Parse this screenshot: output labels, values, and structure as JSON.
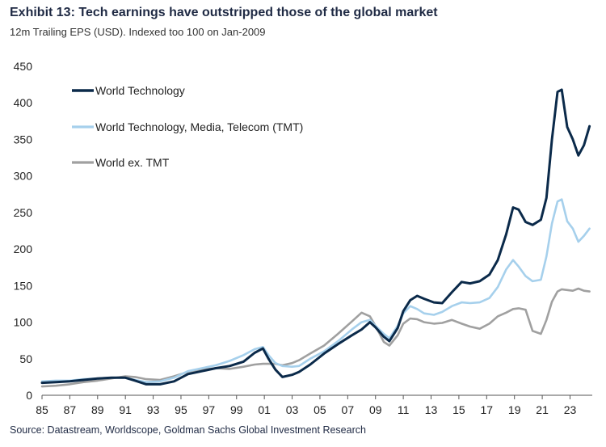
{
  "title": "Exhibit 13: Tech earnings have outstripped those of the global market",
  "subtitle": "12m Trailing EPS (USD). Indexed too 100 on Jan-2009",
  "source": "Source: Datastream, Worldscope, Goldman Sachs Global Investment Research",
  "chart_data": {
    "type": "line",
    "title": "Exhibit 13: Tech earnings have outstripped those of the global market",
    "subtitle": "12m Trailing EPS (USD). Indexed too 100 on Jan-2009",
    "xlabel": "",
    "ylabel": "",
    "ylim": [
      0,
      450
    ],
    "xlim": [
      1985,
      2024.6
    ],
    "y_ticks": [
      0,
      50,
      100,
      150,
      200,
      250,
      300,
      350,
      400,
      450
    ],
    "x_ticks": [
      1985,
      1987,
      1989,
      1991,
      1993,
      1995,
      1997,
      1999,
      2001,
      2003,
      2005,
      2007,
      2009,
      2011,
      2013,
      2015,
      2017,
      2019,
      2021,
      2023
    ],
    "x_tick_labels": [
      "85",
      "87",
      "89",
      "91",
      "93",
      "95",
      "97",
      "99",
      "01",
      "03",
      "05",
      "07",
      "09",
      "11",
      "13",
      "15",
      "17",
      "19",
      "21",
      "23"
    ],
    "grid": false,
    "legend": "top-left",
    "series": [
      {
        "name": "World Technology",
        "color": "#0b2a4a",
        "points": [
          [
            1985,
            17
          ],
          [
            1986,
            18
          ],
          [
            1987,
            19
          ],
          [
            1988,
            21
          ],
          [
            1989,
            23
          ],
          [
            1990,
            24
          ],
          [
            1991,
            24
          ],
          [
            1991.7,
            20
          ],
          [
            1992.5,
            15
          ],
          [
            1993.5,
            15
          ],
          [
            1994.5,
            19
          ],
          [
            1995.5,
            29
          ],
          [
            1996.5,
            33
          ],
          [
            1997.5,
            37
          ],
          [
            1998.5,
            40
          ],
          [
            1999.5,
            46
          ],
          [
            2000.3,
            58
          ],
          [
            2000.9,
            64
          ],
          [
            2001.3,
            50
          ],
          [
            2001.8,
            35
          ],
          [
            2002.3,
            25
          ],
          [
            2003,
            28
          ],
          [
            2003.5,
            32
          ],
          [
            2004.3,
            42
          ],
          [
            2005.3,
            57
          ],
          [
            2006.3,
            70
          ],
          [
            2007.3,
            82
          ],
          [
            2008,
            90
          ],
          [
            2008.6,
            100
          ],
          [
            2009,
            93
          ],
          [
            2009.6,
            80
          ],
          [
            2010,
            74
          ],
          [
            2010.6,
            92
          ],
          [
            2011,
            115
          ],
          [
            2011.5,
            130
          ],
          [
            2012,
            136
          ],
          [
            2012.5,
            132
          ],
          [
            2013.2,
            127
          ],
          [
            2013.8,
            126
          ],
          [
            2014.5,
            141
          ],
          [
            2015.2,
            155
          ],
          [
            2015.8,
            153
          ],
          [
            2016.5,
            156
          ],
          [
            2017.2,
            165
          ],
          [
            2017.8,
            185
          ],
          [
            2018.4,
            220
          ],
          [
            2018.9,
            257
          ],
          [
            2019.3,
            254
          ],
          [
            2019.8,
            237
          ],
          [
            2020.3,
            233
          ],
          [
            2020.9,
            240
          ],
          [
            2021.3,
            270
          ],
          [
            2021.7,
            350
          ],
          [
            2022.1,
            415
          ],
          [
            2022.4,
            418
          ],
          [
            2022.8,
            367
          ],
          [
            2023.2,
            350
          ],
          [
            2023.6,
            328
          ],
          [
            2024,
            342
          ],
          [
            2024.4,
            368
          ]
        ]
      },
      {
        "name": "World Technology, Media, Telecom (TMT)",
        "color": "#a6d0ec",
        "points": [
          [
            1985,
            19
          ],
          [
            1986,
            20
          ],
          [
            1987,
            20
          ],
          [
            1988,
            22
          ],
          [
            1989,
            23
          ],
          [
            1990,
            24
          ],
          [
            1991,
            24
          ],
          [
            1991.7,
            21
          ],
          [
            1992.5,
            18
          ],
          [
            1993.5,
            19
          ],
          [
            1994.5,
            24
          ],
          [
            1995.5,
            33
          ],
          [
            1996.5,
            37
          ],
          [
            1997.5,
            41
          ],
          [
            1998.5,
            47
          ],
          [
            1999.5,
            55
          ],
          [
            2000.3,
            63
          ],
          [
            2000.9,
            66
          ],
          [
            2001.3,
            55
          ],
          [
            2001.8,
            44
          ],
          [
            2002.3,
            40
          ],
          [
            2003,
            39
          ],
          [
            2003.5,
            40
          ],
          [
            2004.3,
            50
          ],
          [
            2005.3,
            60
          ],
          [
            2006.3,
            74
          ],
          [
            2007.3,
            90
          ],
          [
            2008,
            100
          ],
          [
            2008.6,
            103
          ],
          [
            2009,
            95
          ],
          [
            2009.6,
            84
          ],
          [
            2010,
            78
          ],
          [
            2010.6,
            95
          ],
          [
            2011,
            112
          ],
          [
            2011.5,
            122
          ],
          [
            2012,
            118
          ],
          [
            2012.5,
            112
          ],
          [
            2013.2,
            110
          ],
          [
            2013.8,
            114
          ],
          [
            2014.5,
            122
          ],
          [
            2015.2,
            127
          ],
          [
            2015.8,
            126
          ],
          [
            2016.5,
            127
          ],
          [
            2017.2,
            133
          ],
          [
            2017.8,
            148
          ],
          [
            2018.4,
            172
          ],
          [
            2018.9,
            185
          ],
          [
            2019.3,
            176
          ],
          [
            2019.8,
            163
          ],
          [
            2020.3,
            156
          ],
          [
            2020.9,
            158
          ],
          [
            2021.3,
            190
          ],
          [
            2021.7,
            235
          ],
          [
            2022.1,
            265
          ],
          [
            2022.4,
            268
          ],
          [
            2022.8,
            238
          ],
          [
            2023.2,
            228
          ],
          [
            2023.6,
            210
          ],
          [
            2024,
            218
          ],
          [
            2024.4,
            228
          ]
        ]
      },
      {
        "name": "World ex. TMT",
        "color": "#a0a0a0",
        "points": [
          [
            1985,
            12
          ],
          [
            1986,
            13
          ],
          [
            1987,
            15
          ],
          [
            1988,
            18
          ],
          [
            1989,
            20
          ],
          [
            1990,
            23
          ],
          [
            1991,
            26
          ],
          [
            1991.7,
            25
          ],
          [
            1992.5,
            22
          ],
          [
            1993.5,
            21
          ],
          [
            1994.5,
            26
          ],
          [
            1995.5,
            32
          ],
          [
            1996.5,
            35
          ],
          [
            1997.5,
            37
          ],
          [
            1998.5,
            36
          ],
          [
            1999.5,
            39
          ],
          [
            2000.3,
            42
          ],
          [
            2000.9,
            43
          ],
          [
            2001.3,
            43
          ],
          [
            2001.8,
            43
          ],
          [
            2002.3,
            41
          ],
          [
            2003,
            44
          ],
          [
            2003.5,
            48
          ],
          [
            2004.3,
            57
          ],
          [
            2005.3,
            68
          ],
          [
            2006.3,
            84
          ],
          [
            2007.3,
            101
          ],
          [
            2008,
            113
          ],
          [
            2008.6,
            108
          ],
          [
            2009,
            95
          ],
          [
            2009.6,
            73
          ],
          [
            2010,
            68
          ],
          [
            2010.6,
            82
          ],
          [
            2011,
            98
          ],
          [
            2011.5,
            105
          ],
          [
            2012,
            104
          ],
          [
            2012.5,
            100
          ],
          [
            2013.2,
            98
          ],
          [
            2013.8,
            99
          ],
          [
            2014.5,
            103
          ],
          [
            2015.2,
            98
          ],
          [
            2015.8,
            94
          ],
          [
            2016.5,
            91
          ],
          [
            2017.2,
            98
          ],
          [
            2017.8,
            108
          ],
          [
            2018.4,
            113
          ],
          [
            2018.9,
            118
          ],
          [
            2019.3,
            119
          ],
          [
            2019.8,
            117
          ],
          [
            2020.3,
            88
          ],
          [
            2020.9,
            84
          ],
          [
            2021.3,
            103
          ],
          [
            2021.7,
            128
          ],
          [
            2022.1,
            142
          ],
          [
            2022.4,
            145
          ],
          [
            2022.8,
            144
          ],
          [
            2023.2,
            143
          ],
          [
            2023.6,
            146
          ],
          [
            2024,
            143
          ],
          [
            2024.4,
            142
          ]
        ]
      }
    ]
  }
}
